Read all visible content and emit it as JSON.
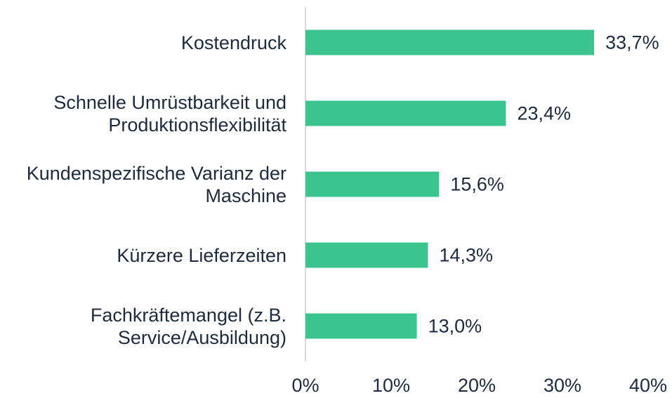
{
  "chart_data": {
    "type": "bar",
    "orientation": "horizontal",
    "categories": [
      "Kostendruck",
      "Schnelle Umrüstbarkeit und Produktionsflexibilität",
      "Kundenspezifische Varianz der Maschine",
      "Kürzere Lieferzeiten",
      "Fachkräftemangel (z.B. Service/Ausbildung)"
    ],
    "values": [
      33.7,
      23.4,
      15.6,
      14.3,
      13.0
    ],
    "value_labels": [
      "33,7%",
      "23,4%",
      "15,6%",
      "14,3%",
      "13,0%"
    ],
    "color": "#3cc48f",
    "xlim": [
      0,
      40
    ],
    "xticks": [
      {
        "value": 0,
        "label": "0%"
      },
      {
        "value": 10,
        "label": "10%"
      },
      {
        "value": 20,
        "label": "20%"
      },
      {
        "value": 30,
        "label": "30%"
      },
      {
        "value": 40,
        "label": "40%"
      }
    ],
    "grid": false
  }
}
